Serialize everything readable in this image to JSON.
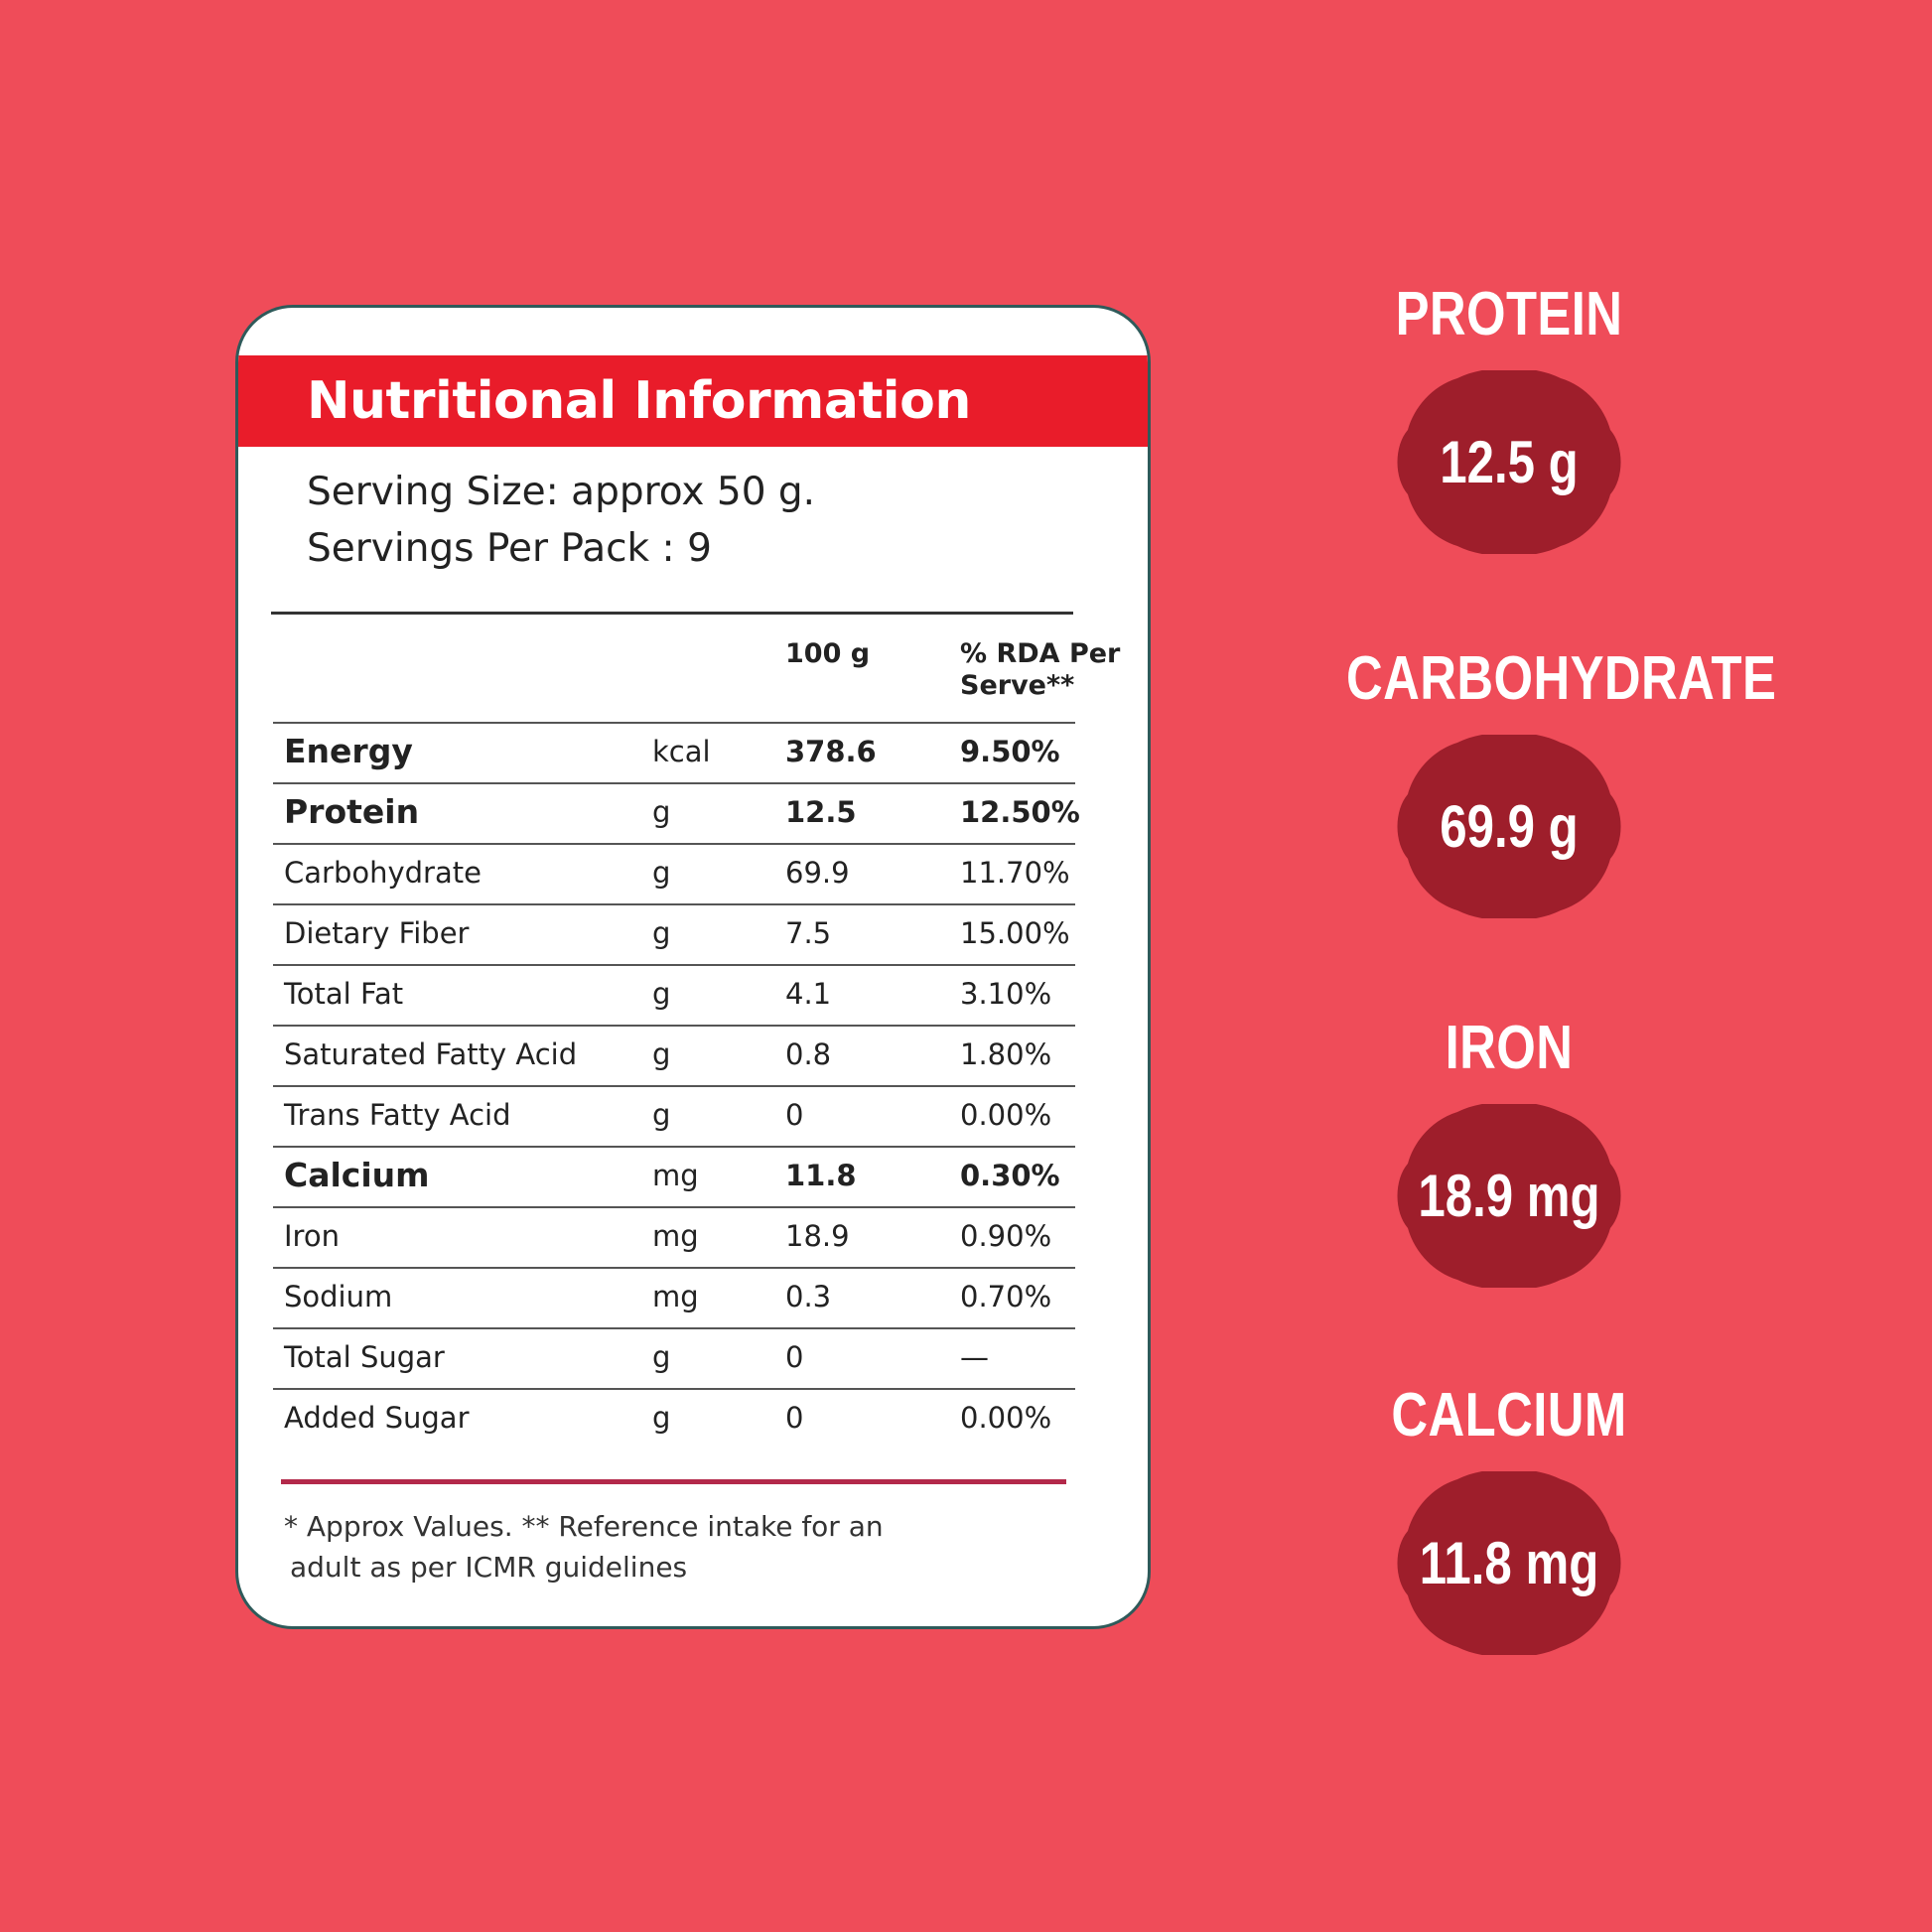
{
  "card": {
    "title": "Nutritional Information",
    "serving_size": "Serving Size: approx 50 g.",
    "servings_per_pack": "Servings Per Pack : 9",
    "columns": {
      "qty": "100 g",
      "rda_line1": "% RDA Per",
      "rda_line2": "Serve**"
    },
    "rows": [
      {
        "nutrient": "Energy",
        "unit": "kcal",
        "qty": "378.6",
        "rda": "9.50%"
      },
      {
        "nutrient": "Protein",
        "unit": "g",
        "qty": "12.5",
        "rda": "12.50%"
      },
      {
        "nutrient": "Carbohydrate",
        "unit": "g",
        "qty": "69.9",
        "rda": "11.70%"
      },
      {
        "nutrient": "Dietary Fiber",
        "unit": "g",
        "qty": "7.5",
        "rda": "15.00%"
      },
      {
        "nutrient": "Total Fat",
        "unit": "g",
        "qty": "4.1",
        "rda": "3.10%"
      },
      {
        "nutrient": "Saturated Fatty Acid",
        "unit": "g",
        "qty": "0.8",
        "rda": "1.80%"
      },
      {
        "nutrient": "Trans Fatty Acid",
        "unit": "g",
        "qty": "0",
        "rda": "0.00%"
      },
      {
        "nutrient": "Calcium",
        "unit": "mg",
        "qty": "11.8",
        "rda": "0.30%"
      },
      {
        "nutrient": "Iron",
        "unit": "mg",
        "qty": "18.9",
        "rda": "0.90%"
      },
      {
        "nutrient": "Sodium",
        "unit": "mg",
        "qty": "0.3",
        "rda": "0.70%"
      },
      {
        "nutrient": "Total Sugar",
        "unit": "g",
        "qty": "0",
        "rda": "—"
      },
      {
        "nutrient": "Added Sugar",
        "unit": "g",
        "qty": "0",
        "rda": "0.00%"
      }
    ],
    "footnote_line1": "* Approx Values. ** Reference intake for an",
    "footnote_line2": "adult as per ICMR guidelines"
  },
  "highlights": [
    {
      "label": "PROTEIN",
      "value": "12.5 g"
    },
    {
      "label": "CARBOHYDRATE",
      "value": "69.9 g"
    },
    {
      "label": "IRON",
      "value": "18.9 mg"
    },
    {
      "label": "CALCIUM",
      "value": "11.8 mg"
    }
  ],
  "colors": {
    "background": "#ef4c59",
    "header_red": "#e91c2a",
    "badge_maroon": "#9e1e2b",
    "card_border": "#2f5a5a",
    "bottom_rule": "#b3294a"
  }
}
